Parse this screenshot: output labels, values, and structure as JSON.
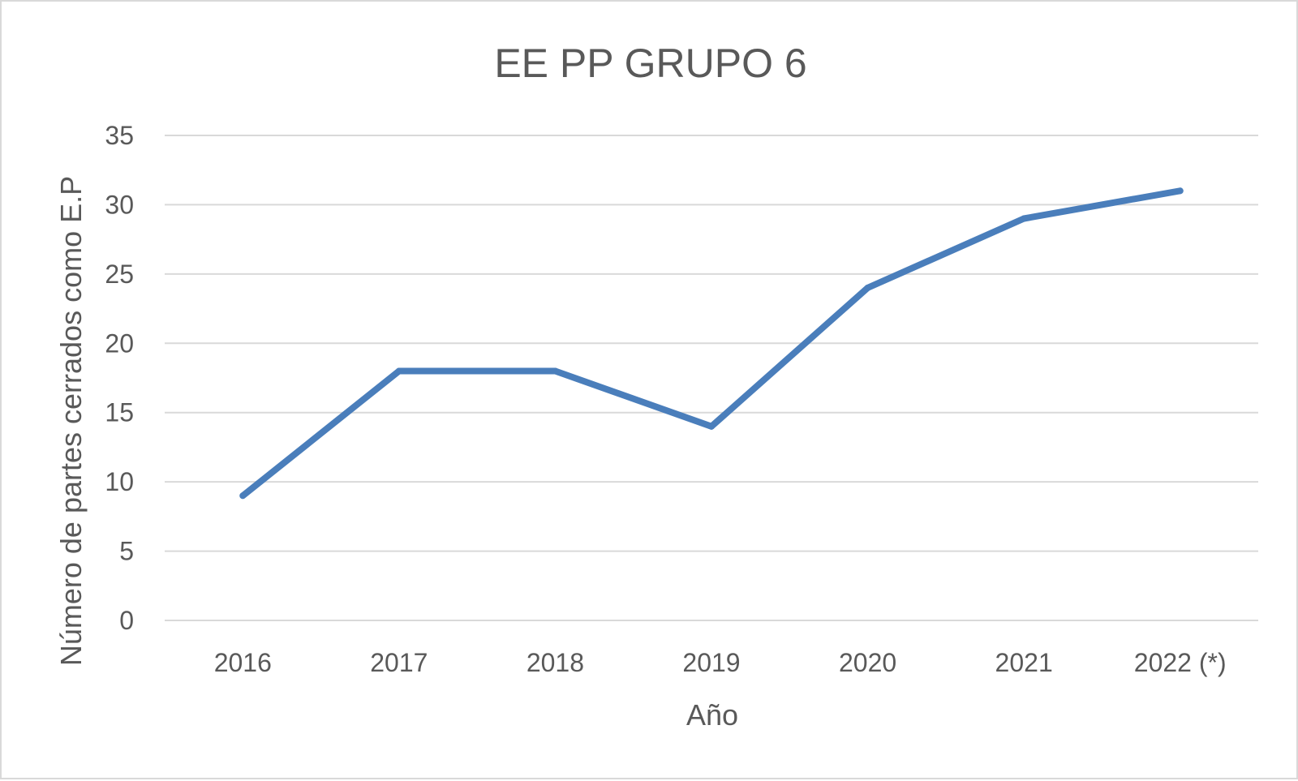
{
  "chart_data": {
    "type": "line",
    "title": "EE PP GRUPO 6",
    "xlabel": "Año",
    "ylabel": "Número de partes cerrados como E.P",
    "categories": [
      "2016",
      "2017",
      "2018",
      "2019",
      "2020",
      "2021",
      "2022 (*)"
    ],
    "series": [
      {
        "values": [
          9,
          18,
          18,
          14,
          24,
          29,
          31
        ]
      }
    ],
    "ylim": [
      0,
      35
    ],
    "yticks": [
      0,
      5,
      10,
      15,
      20,
      25,
      30,
      35
    ],
    "grid": true,
    "legend": "none",
    "colors": {
      "series": "#4a7ebb",
      "grid": "#d9d9d9",
      "text": "#595959"
    }
  }
}
